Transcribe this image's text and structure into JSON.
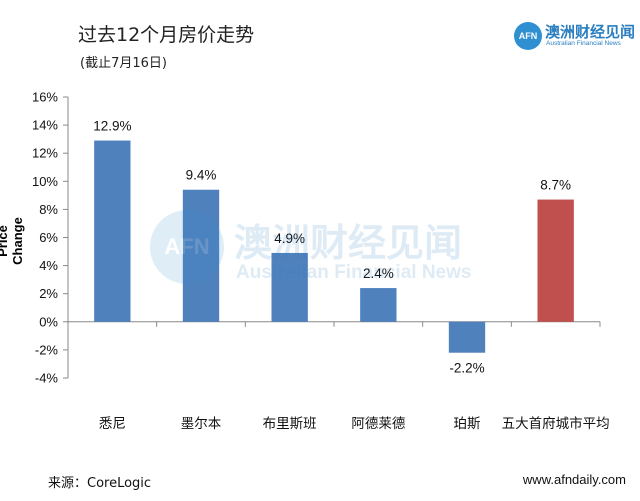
{
  "header": {
    "title": "过去12个月房价走势",
    "subtitle": "(截止7月16日)"
  },
  "logo": {
    "badge": "AFN",
    "name_cn": "澳洲财经见闻",
    "name_en": "Australian Financial News",
    "color": "#2b7fc0"
  },
  "watermark": {
    "badge": "AFN",
    "name_cn": "澳洲财经见闻",
    "name_en": "Australian Financial News"
  },
  "footer": {
    "source": "来源：CoreLogic",
    "website": "www.afndaily.com"
  },
  "chart_data": {
    "type": "bar",
    "ylabel": "Price Change",
    "xlabel": "",
    "ylim": [
      -4,
      16
    ],
    "ytick_step": 2,
    "ytick_labels": [
      "-4%",
      "-2%",
      "0%",
      "2%",
      "4%",
      "6%",
      "8%",
      "10%",
      "12%",
      "14%",
      "16%"
    ],
    "grid": false,
    "categories": [
      "悉尼",
      "墨尔本",
      "布里斯班",
      "阿德莱德",
      "珀斯",
      "五大首府城市平均"
    ],
    "values": [
      12.9,
      9.4,
      4.9,
      2.4,
      -2.2,
      8.7
    ],
    "data_labels": [
      "12.9%",
      "9.4%",
      "4.9%",
      "2.4%",
      "-2.2%",
      "8.7%"
    ],
    "colors": [
      "#4f81bd",
      "#4f81bd",
      "#4f81bd",
      "#4f81bd",
      "#4f81bd",
      "#c0504d"
    ]
  }
}
